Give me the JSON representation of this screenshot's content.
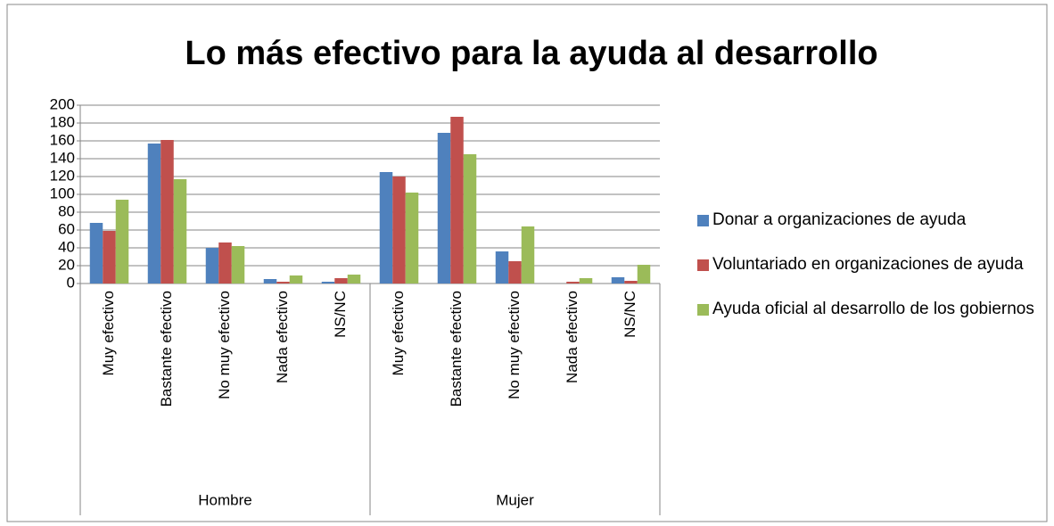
{
  "chart_data": {
    "type": "bar",
    "title": "Lo más efectivo para la ayuda al desarrollo",
    "groups": [
      "Hombre",
      "Mujer"
    ],
    "categories": [
      "Muy efectivo",
      "Bastante efectivo",
      "No muy efectivo",
      "Nada efectivo",
      "NS/NC",
      "Muy efectivo",
      "Bastante efectivo",
      "No muy efectivo",
      "Nada efectivo",
      "NS/NC"
    ],
    "series": [
      {
        "name": "Donar a organizaciones de ayuda",
        "color": "#4f81bd",
        "values": [
          68,
          157,
          40,
          5,
          2,
          125,
          169,
          36,
          0,
          7
        ]
      },
      {
        "name": "Voluntariado en organizaciones de ayuda",
        "color": "#c0504d",
        "values": [
          59,
          161,
          46,
          2,
          6,
          120,
          187,
          25,
          2,
          3
        ]
      },
      {
        "name": "Ayuda oficial al desarrollo de los gobiernos",
        "color": "#9bbb59",
        "values": [
          94,
          117,
          42,
          9,
          10,
          102,
          145,
          64,
          6,
          21
        ]
      }
    ],
    "ylim": [
      0,
      200
    ],
    "yticks": [
      0,
      20,
      40,
      60,
      80,
      100,
      120,
      140,
      160,
      180,
      200
    ],
    "grid": true,
    "legend": "right"
  }
}
